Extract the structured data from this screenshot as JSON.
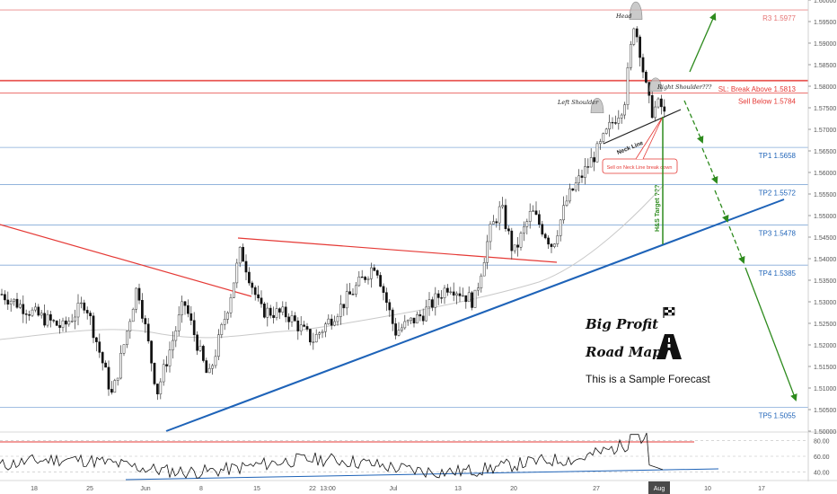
{
  "chart_data": {
    "type": "candlestick",
    "price_axis": {
      "min": 1.5,
      "max": 1.6,
      "ticks": [
        "1.60000",
        "1.59500",
        "1.59000",
        "1.58500",
        "1.58000",
        "1.57500",
        "1.57000",
        "1.56500",
        "1.56000",
        "1.55500",
        "1.55000",
        "1.54500",
        "1.54000",
        "1.53500",
        "1.53000",
        "1.52500",
        "1.52000",
        "1.51500",
        "1.51000",
        "1.50500",
        "1.50000"
      ]
    },
    "time_axis": {
      "labels": [
        "18",
        "25",
        "Jun",
        "8",
        "15",
        "22",
        "13:00",
        "Jul",
        "13",
        "20",
        "27",
        "Aug",
        "10",
        "17"
      ],
      "highlighted": "Aug"
    },
    "levels": [
      {
        "id": "r3",
        "label": "R3 1.5977",
        "value": 1.5977,
        "color": "#e57373"
      },
      {
        "id": "sl",
        "label": "SL: Break Above 1.5813",
        "value": 1.5813,
        "color": "#e53935"
      },
      {
        "id": "sell",
        "label": "Sell Below 1.5784",
        "value": 1.5784,
        "color": "#e53935"
      },
      {
        "id": "tp1",
        "label": "TP1 1.5658",
        "value": 1.5658,
        "color": "#1e63b8"
      },
      {
        "id": "tp2",
        "label": "TP2 1.5572",
        "value": 1.5572,
        "color": "#1e63b8"
      },
      {
        "id": "tp3",
        "label": "TP3 1.5478",
        "value": 1.5478,
        "color": "#1e63b8"
      },
      {
        "id": "tp4",
        "label": "TP4 1.5385",
        "value": 1.5385,
        "color": "#1e63b8"
      },
      {
        "id": "tp5",
        "label": "TP5 1.5055",
        "value": 1.5055,
        "color": "#1e63b8"
      }
    ],
    "annotations": {
      "head": "Head",
      "left_shoulder": "Left Shoulder",
      "right_shoulder": "Right Shoulder???",
      "neck_line": "Neck Line",
      "sell_note": "Sell on Neck Line break down",
      "target": "H&S Target ???"
    },
    "oscillator": {
      "ticks": [
        "80.00",
        "60.00",
        "40.00"
      ]
    },
    "colors": {
      "up": "#26a69a",
      "down": "#111111",
      "resistance": "#e53935",
      "support": "#1e63b8",
      "forecast": "#2e8b1e"
    }
  },
  "branding": {
    "title_line1": "Big Profit",
    "title_line2": "Road Map",
    "subtitle": "This is a Sample Forecast",
    "flag_icon": "checkered-flag-icon",
    "road_icon": "road-icon"
  }
}
